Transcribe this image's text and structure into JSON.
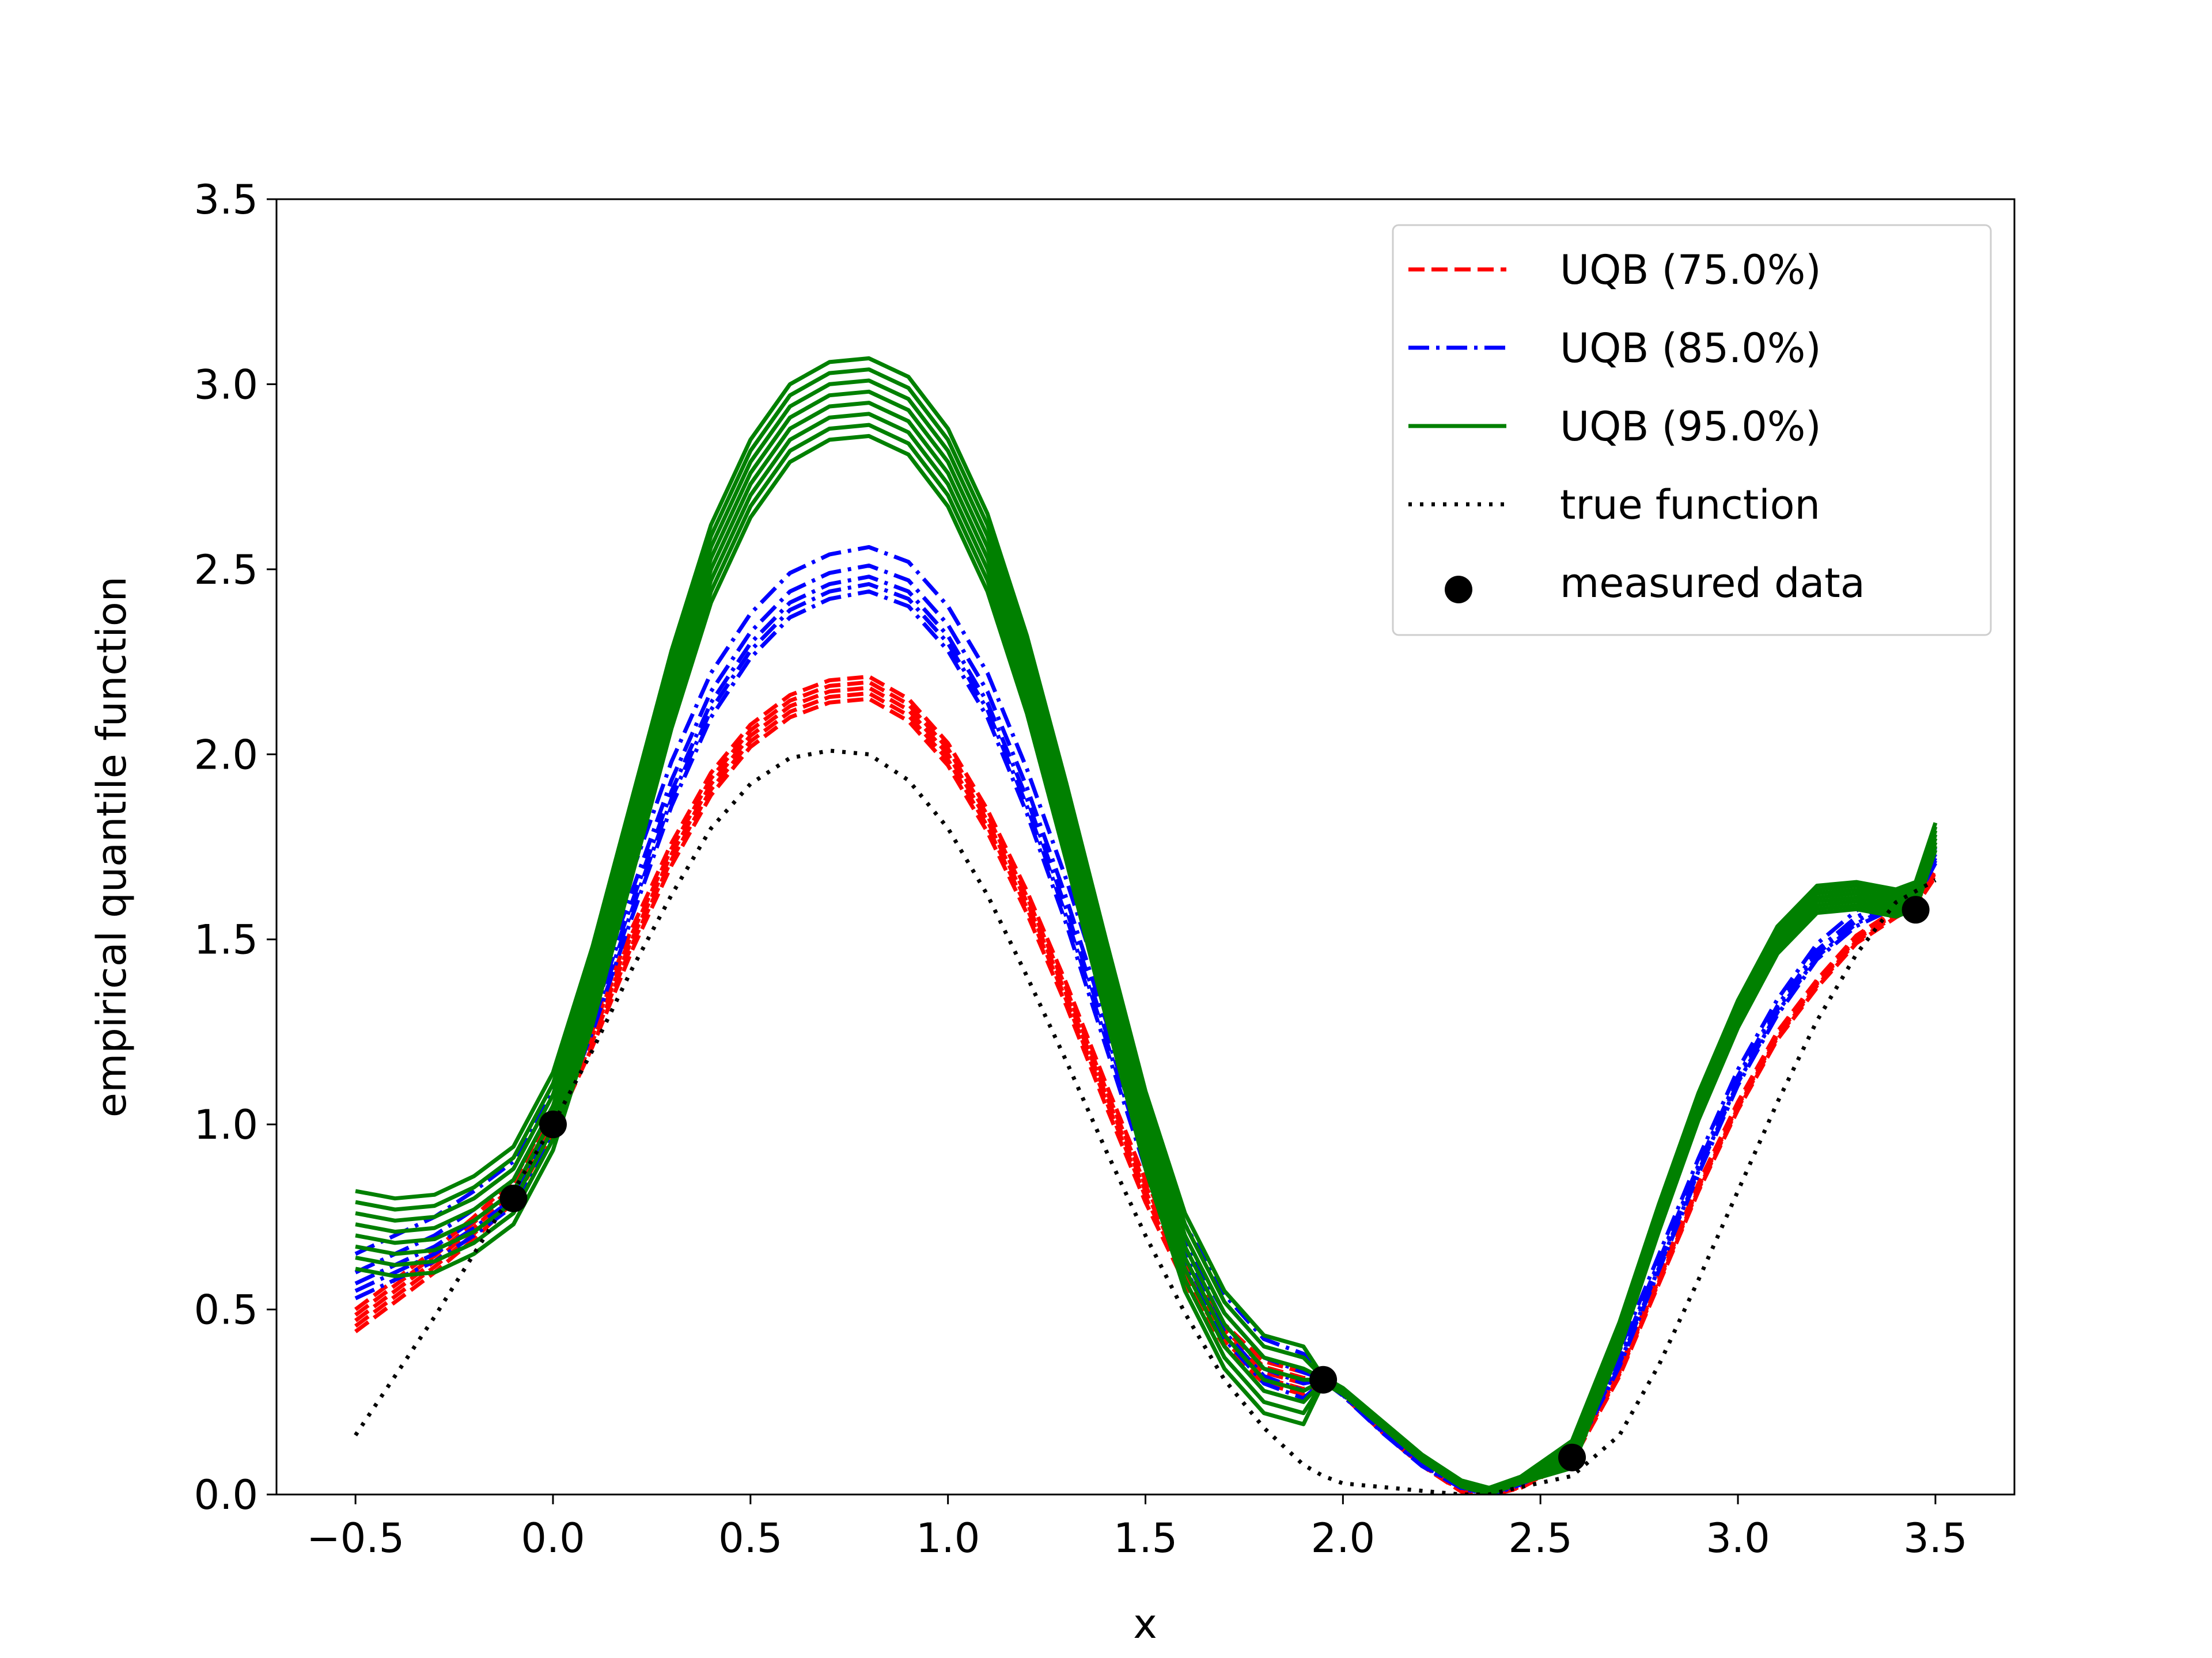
{
  "chart_data": {
    "type": "line",
    "title": "",
    "xlabel": "x",
    "ylabel": "empirical quantile function",
    "xlim": [
      -0.7,
      3.7
    ],
    "ylim": [
      0.0,
      3.5
    ],
    "xticks": [
      -0.5,
      0.0,
      0.5,
      1.0,
      1.5,
      2.0,
      2.5,
      3.0,
      3.5
    ],
    "xtick_labels": [
      "−0.5",
      "0.0",
      "0.5",
      "1.0",
      "1.5",
      "2.0",
      "2.5",
      "3.0",
      "3.5"
    ],
    "yticks": [
      0.0,
      0.5,
      1.0,
      1.5,
      2.0,
      2.5,
      3.0,
      3.5
    ],
    "ytick_labels": [
      "0.0",
      "0.5",
      "1.0",
      "1.5",
      "2.0",
      "2.5",
      "3.0",
      "3.5"
    ],
    "grid": false,
    "legend_position": "top-right",
    "legend": [
      {
        "label": "UQB (75.0%)",
        "color": "#ff0000",
        "style": "dashed"
      },
      {
        "label": "UQB (85.0%)",
        "color": "#0000ff",
        "style": "dashdot"
      },
      {
        "label": "UQB (95.0%)",
        "color": "#008000",
        "style": "solid"
      },
      {
        "label": "true function",
        "color": "#000000",
        "style": "dotted"
      },
      {
        "label": "measured data",
        "color": "#000000",
        "style": "marker"
      }
    ],
    "x": [
      -0.5,
      -0.4,
      -0.3,
      -0.2,
      -0.1,
      0.0,
      0.1,
      0.2,
      0.3,
      0.4,
      0.5,
      0.6,
      0.7,
      0.8,
      0.9,
      1.0,
      1.1,
      1.2,
      1.3,
      1.4,
      1.5,
      1.6,
      1.7,
      1.8,
      1.9,
      1.95,
      2.0,
      2.1,
      2.2,
      2.3,
      2.37,
      2.45,
      2.58,
      2.7,
      2.8,
      2.9,
      3.0,
      3.1,
      3.2,
      3.3,
      3.4,
      3.45,
      3.5
    ],
    "series": [
      {
        "name": "true function",
        "color": "#000000",
        "style": "dotted",
        "values": [
          0.16,
          0.32,
          0.48,
          0.65,
          0.82,
          1.0,
          1.2,
          1.42,
          1.62,
          1.8,
          1.92,
          1.99,
          2.01,
          2.0,
          1.93,
          1.8,
          1.62,
          1.4,
          1.17,
          0.93,
          0.7,
          0.49,
          0.31,
          0.18,
          0.08,
          0.05,
          0.03,
          0.02,
          0.01,
          0.0,
          0.0,
          0.02,
          0.05,
          0.16,
          0.35,
          0.58,
          0.82,
          1.06,
          1.28,
          1.46,
          1.6,
          1.63,
          1.66
        ]
      },
      {
        "name": "UQB (75.0%)",
        "color": "#ff0000",
        "style": "dashed",
        "count": 5,
        "values": [
          0.47,
          0.55,
          0.63,
          0.72,
          0.82,
          1.01,
          1.24,
          1.5,
          1.73,
          1.92,
          2.05,
          2.13,
          2.17,
          2.18,
          2.12,
          2.0,
          1.82,
          1.6,
          1.35,
          1.08,
          0.82,
          0.6,
          0.43,
          0.33,
          0.3,
          0.31,
          0.27,
          0.17,
          0.08,
          0.01,
          0.0,
          0.02,
          0.1,
          0.33,
          0.58,
          0.83,
          1.05,
          1.24,
          1.38,
          1.5,
          1.57,
          1.6,
          1.68
        ],
        "offsets": [
          -0.03,
          -0.015,
          0.0,
          0.015,
          0.03
        ]
      },
      {
        "name": "UQB (85.0%)",
        "color": "#0000ff",
        "style": "dashdot",
        "count": 5,
        "values": [
          0.57,
          0.62,
          0.67,
          0.74,
          0.82,
          1.02,
          1.29,
          1.6,
          1.9,
          2.14,
          2.3,
          2.41,
          2.46,
          2.48,
          2.44,
          2.32,
          2.14,
          1.88,
          1.58,
          1.25,
          0.92,
          0.65,
          0.46,
          0.34,
          0.3,
          0.31,
          0.27,
          0.17,
          0.08,
          0.02,
          0.0,
          0.03,
          0.11,
          0.36,
          0.62,
          0.88,
          1.12,
          1.31,
          1.46,
          1.55,
          1.6,
          1.62,
          1.72
        ],
        "offsets": [
          -0.04,
          -0.02,
          0.0,
          0.03,
          0.08
        ]
      },
      {
        "name": "UQB (95.0%)",
        "color": "#008000",
        "style": "solid",
        "count": 8,
        "values": [
          0.72,
          0.7,
          0.71,
          0.76,
          0.84,
          1.04,
          1.38,
          1.78,
          2.18,
          2.52,
          2.75,
          2.9,
          2.96,
          2.97,
          2.92,
          2.78,
          2.55,
          2.22,
          1.82,
          1.4,
          0.99,
          0.66,
          0.45,
          0.33,
          0.3,
          0.31,
          0.28,
          0.19,
          0.1,
          0.03,
          0.01,
          0.04,
          0.11,
          0.43,
          0.75,
          1.05,
          1.3,
          1.5,
          1.61,
          1.62,
          1.6,
          1.62,
          1.78
        ],
        "offsets": [
          -0.11,
          -0.08,
          -0.05,
          -0.02,
          0.01,
          0.04,
          0.07,
          0.1
        ]
      }
    ],
    "measured_data": {
      "x": [
        -0.1,
        0.0,
        1.95,
        2.58,
        3.45
      ],
      "y": [
        0.8,
        1.0,
        0.31,
        0.1,
        1.58
      ]
    }
  }
}
